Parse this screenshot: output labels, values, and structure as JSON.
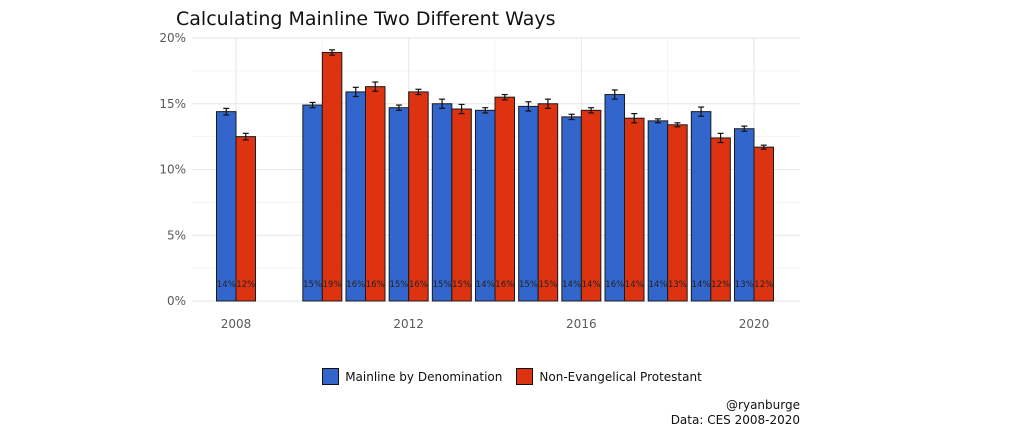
{
  "chart_data": {
    "type": "bar",
    "title": "Calculating Mainline Two Different Ways",
    "xlabel": "",
    "ylabel": "",
    "x": [
      2008,
      2010,
      2011,
      2012,
      2013,
      2014,
      2015,
      2016,
      2017,
      2018,
      2019,
      2020
    ],
    "xlim": [
      2007,
      2021
    ],
    "ylim": [
      0,
      20
    ],
    "y_ticks": [
      "0%",
      "5%",
      "10%",
      "15%",
      "20%"
    ],
    "y_tick_values": [
      0,
      5,
      10,
      15,
      20
    ],
    "x_ticks": [
      "2008",
      "2012",
      "2016",
      "2020"
    ],
    "x_tick_values": [
      2008,
      2012,
      2016,
      2020
    ],
    "grid": true,
    "legend_position": "bottom",
    "series": [
      {
        "name": "Mainline by Denomination",
        "color": "#3366cc",
        "values": [
          14.4,
          14.9,
          15.9,
          14.7,
          15.0,
          14.5,
          14.8,
          14.0,
          15.7,
          13.7,
          14.4,
          13.1
        ],
        "error": [
          0.25,
          0.2,
          0.35,
          0.2,
          0.35,
          0.2,
          0.35,
          0.2,
          0.35,
          0.15,
          0.35,
          0.2
        ],
        "labels": [
          "14%",
          "15%",
          "16%",
          "15%",
          "15%",
          "14%",
          "15%",
          "14%",
          "16%",
          "14%",
          "14%",
          "13%"
        ]
      },
      {
        "name": "Non-Evangelical Protestant",
        "color": "#dd3311",
        "values": [
          12.5,
          18.9,
          16.3,
          15.9,
          14.6,
          15.5,
          15.0,
          14.5,
          13.9,
          13.4,
          12.4,
          11.7
        ],
        "error": [
          0.25,
          0.2,
          0.35,
          0.2,
          0.35,
          0.2,
          0.35,
          0.2,
          0.35,
          0.15,
          0.35,
          0.15
        ],
        "labels": [
          "12%",
          "19%",
          "16%",
          "16%",
          "15%",
          "16%",
          "15%",
          "14%",
          "14%",
          "13%",
          "12%",
          "12%"
        ]
      }
    ]
  },
  "caption": {
    "author": "@ryanburge",
    "source": "Data: CES 2008-2020"
  }
}
